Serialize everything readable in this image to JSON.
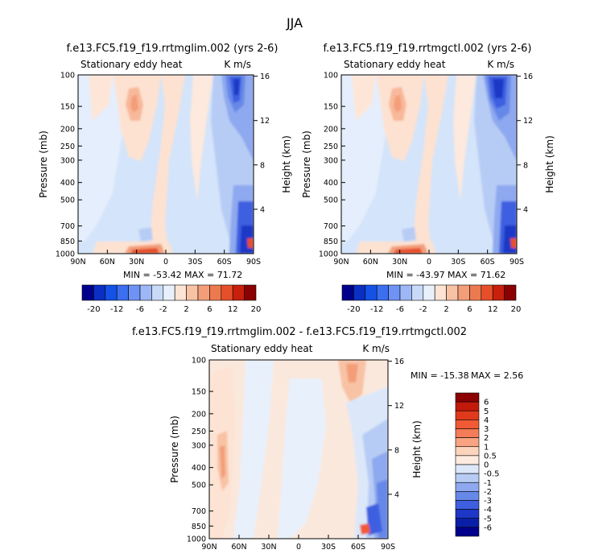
{
  "main_title": "JJA",
  "chart_data": [
    {
      "type": "heatmap",
      "title": "f.e13.FC5.f19_f19.rrtmglim.002 (yrs 2-6)",
      "left_subtitle": "Stationary eddy heat",
      "right_subtitle": "K m/s",
      "ylabel": "Pressure (mb)",
      "y2label": "Height (km)",
      "x_ticks": [
        "90N",
        "60N",
        "30N",
        "0",
        "30S",
        "60S",
        "90S"
      ],
      "y_ticks": [
        "100",
        "150",
        "200",
        "250",
        "300",
        "400",
        "500",
        "700",
        "850",
        "1000"
      ],
      "y_tick_values": [
        100,
        150,
        200,
        250,
        300,
        400,
        500,
        700,
        850,
        1000
      ],
      "y2_ticks": [
        "16",
        "12",
        "8",
        "4"
      ],
      "y2_tick_values": [
        16,
        12,
        8,
        4
      ],
      "ylim": [
        1000,
        100
      ],
      "xlim": [
        90,
        -90
      ],
      "min_label": "MIN = -53.42",
      "max_label": "MAX =  71.72",
      "min": -53.42,
      "max": 71.72,
      "colorbar_labels": [
        "-20",
        "-12",
        "-6",
        "-2",
        "2",
        "6",
        "12",
        "20"
      ],
      "colorbar_levels": [
        -20,
        -16,
        -12,
        -8,
        -6,
        -4,
        -2,
        0,
        2,
        4,
        6,
        8,
        12,
        16,
        20
      ]
    },
    {
      "type": "heatmap",
      "title": "f.e13.FC5.f19_f19.rrtmgctl.002 (yrs 2-6)",
      "left_subtitle": "Stationary eddy heat",
      "right_subtitle": "K m/s",
      "ylabel": "Pressure (mb)",
      "y2label": "Height (km)",
      "x_ticks": [
        "90N",
        "60N",
        "30N",
        "0",
        "30S",
        "60S",
        "90S"
      ],
      "y_ticks": [
        "100",
        "150",
        "200",
        "250",
        "300",
        "400",
        "500",
        "700",
        "850",
        "1000"
      ],
      "y_tick_values": [
        100,
        150,
        200,
        250,
        300,
        400,
        500,
        700,
        850,
        1000
      ],
      "y2_ticks": [
        "16",
        "12",
        "8",
        "4"
      ],
      "y2_tick_values": [
        16,
        12,
        8,
        4
      ],
      "ylim": [
        1000,
        100
      ],
      "xlim": [
        90,
        -90
      ],
      "min_label": "MIN = -43.97",
      "max_label": "MAX =  71.62",
      "min": -43.97,
      "max": 71.62,
      "colorbar_labels": [
        "-20",
        "-12",
        "-6",
        "-2",
        "2",
        "6",
        "12",
        "20"
      ],
      "colorbar_levels": [
        -20,
        -16,
        -12,
        -8,
        -6,
        -4,
        -2,
        0,
        2,
        4,
        6,
        8,
        12,
        16,
        20
      ]
    },
    {
      "type": "heatmap",
      "title": "f.e13.FC5.f19_f19.rrtmglim.002 - f.e13.FC5.f19_f19.rrtmgctl.002",
      "left_subtitle": "Stationary eddy heat",
      "right_subtitle": "K m/s",
      "ylabel": "Pressure (mb)",
      "y2label": "Height (km)",
      "x_ticks": [
        "90N",
        "60N",
        "30N",
        "0",
        "30S",
        "60S",
        "90S"
      ],
      "y_ticks": [
        "100",
        "150",
        "200",
        "250",
        "300",
        "400",
        "500",
        "700",
        "850",
        "1000"
      ],
      "y_tick_values": [
        100,
        150,
        200,
        250,
        300,
        400,
        500,
        700,
        850,
        1000
      ],
      "y2_ticks": [
        "16",
        "12",
        "8",
        "4"
      ],
      "y2_tick_values": [
        16,
        12,
        8,
        4
      ],
      "ylim": [
        1000,
        100
      ],
      "xlim": [
        90,
        -90
      ],
      "min_label": "MIN = -15.38",
      "max_label": "MAX =   2.56",
      "min": -15.38,
      "max": 2.56,
      "colorbar_labels": [
        "6",
        "5",
        "4",
        "3",
        "2",
        "1",
        "0.5",
        "0",
        "-0.5",
        "-1",
        "-2",
        "-3",
        "-4",
        "-5",
        "-6"
      ],
      "colorbar_levels": [
        6,
        5,
        4,
        3,
        2,
        1,
        0.5,
        0,
        -0.5,
        -1,
        -2,
        -3,
        -4,
        -5,
        -6
      ]
    }
  ],
  "colors": {
    "abs_colorbar": [
      "#00008b",
      "#0a2fc2",
      "#1452e6",
      "#3b6ff0",
      "#6f93f4",
      "#9db7f7",
      "#c9daf9",
      "#e8f0fc",
      "#fde3d3",
      "#f8c2a4",
      "#f39e79",
      "#ec7a4f",
      "#e5502a",
      "#c8200c",
      "#8b0000"
    ],
    "diff_colorbar": [
      "#8b0000",
      "#c11a0a",
      "#e0391b",
      "#f05a34",
      "#f47c58",
      "#f8a482",
      "#fcd3bd",
      "#fdebdf",
      "#dce8fa",
      "#b7ccf5",
      "#8ea9ef",
      "#6688e8",
      "#3e5fe0",
      "#1d38c6",
      "#0a1fa8",
      "#00008b"
    ],
    "field_bg": "#d4e4fa",
    "field_bg_diff": "#fbe8dc"
  }
}
